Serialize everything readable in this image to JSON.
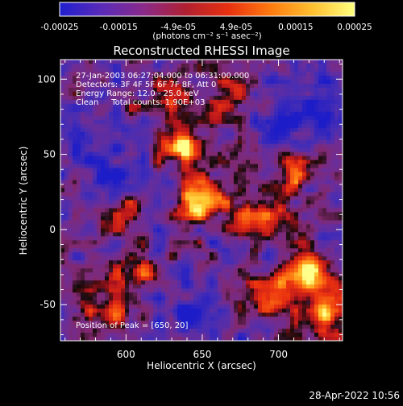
{
  "colorbar": {
    "ticks": [
      "-0.00025",
      "-0.00015",
      "-4.9e-05",
      "4.9e-05",
      "0.00015",
      "0.00025"
    ],
    "tick_values": [
      -0.00025,
      -0.00015,
      -4.9e-05,
      4.9e-05,
      0.00015,
      0.00025
    ],
    "range": [
      -0.00025,
      0.00025
    ],
    "unit_label": "(photons cm⁻² s⁻¹ asec⁻²)",
    "colors": [
      "#1f1fd0",
      "#5a2bb8",
      "#8a2a8a",
      "#b02030",
      "#e83010",
      "#ff7a10",
      "#ffc030",
      "#ffff80"
    ]
  },
  "chart_data": {
    "type": "heatmap",
    "title": "Reconstructed RHESSI Image",
    "xlabel": "Heliocentric X (arcsec)",
    "ylabel": "Heliocentric Y (arcsec)",
    "xlim": [
      557,
      742
    ],
    "ylim": [
      -74,
      113
    ],
    "xticks": [
      600,
      650,
      700
    ],
    "yticks": [
      -50,
      0,
      50,
      100
    ],
    "annotations": [
      "27-Jan-2003 06:27:04.000 to 06:31:00.000",
      "Detectors: 3F 4F 5F 6F 7F 8F, Att 0",
      "Energy Range: 12.0 - 25.0 keV",
      "Clean     Total counts: 1.90E+03"
    ],
    "peak_text": "Position of Peak = [650, 20]",
    "peak": [
      650,
      20
    ],
    "bright_regions": [
      {
        "x": 650,
        "y": 20,
        "intensity": 1.0
      },
      {
        "x": 640,
        "y": 55,
        "intensity": 0.85
      },
      {
        "x": 685,
        "y": 10,
        "intensity": 0.7
      },
      {
        "x": 720,
        "y": -30,
        "intensity": 0.9
      },
      {
        "x": 735,
        "y": -55,
        "intensity": 0.8
      },
      {
        "x": 695,
        "y": -45,
        "intensity": 0.6
      },
      {
        "x": 610,
        "y": -30,
        "intensity": 0.6
      },
      {
        "x": 600,
        "y": 15,
        "intensity": 0.45
      },
      {
        "x": 590,
        "y": -55,
        "intensity": 0.5
      },
      {
        "x": 710,
        "y": 40,
        "intensity": 0.55
      },
      {
        "x": 625,
        "y": 90,
        "intensity": 0.45
      },
      {
        "x": 665,
        "y": 85,
        "intensity": 0.5
      }
    ],
    "dim_regions": [
      {
        "x": 730,
        "y": 85
      },
      {
        "x": 700,
        "y": 70
      },
      {
        "x": 575,
        "y": 60
      },
      {
        "x": 640,
        "y": -55
      },
      {
        "x": 590,
        "y": 35
      }
    ]
  },
  "footer": {
    "timestamp": "28-Apr-2022 10:56"
  }
}
